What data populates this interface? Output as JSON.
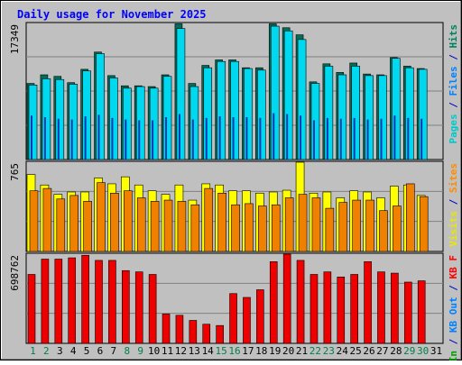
{
  "chart_data": {
    "type": "bar",
    "title": "Daily usage for November 2025",
    "categories": [
      "1",
      "2",
      "3",
      "4",
      "5",
      "6",
      "7",
      "8",
      "9",
      "10",
      "11",
      "12",
      "13",
      "14",
      "15",
      "16",
      "17",
      "18",
      "19",
      "20",
      "21",
      "22",
      "23",
      "24",
      "25",
      "26",
      "27",
      "28",
      "29",
      "30",
      "31"
    ],
    "weekend_categories": [
      "1",
      "2",
      "8",
      "9",
      "15",
      "16",
      "22",
      "23",
      "29",
      "30"
    ],
    "panels": [
      {
        "name": "top",
        "max_label": "17349",
        "ymax": 17349,
        "right_label": [
          {
            "text": "Pages",
            "color": "#00c8c8"
          },
          {
            "text": " / ",
            "color": "#0000c0"
          },
          {
            "text": "Files",
            "color": "#0080ff"
          },
          {
            "text": " / ",
            "color": "#0000c0"
          },
          {
            "text": "Hits",
            "color": "#00805c"
          }
        ],
        "series": [
          {
            "name": "Hits",
            "color": "#006e5a",
            "values": [
              9700,
              10800,
              10600,
              9800,
              11500,
              13700,
              10700,
              9400,
              9400,
              9300,
              10800,
              17300,
              9700,
              12000,
              12700,
              12700,
              11700,
              11700,
              17300,
              16800,
              15900,
              9900,
              12200,
              11100,
              12300,
              10900,
              10800,
              13000,
              11900,
              11600,
              0
            ]
          },
          {
            "name": "Files",
            "color": "#00d8f0",
            "values": [
              9500,
              10300,
              10200,
              9600,
              11300,
              13500,
              10400,
              9100,
              9300,
              9100,
              10600,
              16700,
              9300,
              11700,
              12500,
              12500,
              11600,
              11400,
              17000,
              16400,
              15300,
              9700,
              11900,
              10800,
              11900,
              10700,
              10700,
              12900,
              11700,
              11500,
              0
            ]
          },
          {
            "name": "Pages",
            "color": "#0038b8",
            "values": [
              5600,
              5400,
              5200,
              5100,
              5500,
              5700,
              5300,
              5100,
              5000,
              5000,
              5400,
              5800,
              5100,
              5300,
              5500,
              5400,
              5400,
              5300,
              5900,
              5800,
              5600,
              5000,
              5300,
              5200,
              5300,
              5100,
              5200,
              5600,
              5300,
              5200,
              0
            ]
          }
        ]
      },
      {
        "name": "mid",
        "max_label": "765",
        "ymax": 765,
        "right_label": [
          {
            "text": "Visits",
            "color": "#e8e800"
          },
          {
            "text": " / ",
            "color": "#0000c0"
          },
          {
            "text": "Sites",
            "color": "#ff8c00"
          }
        ],
        "series": [
          {
            "name": "Visits",
            "color": "#ffff00",
            "values": [
              660,
              570,
              490,
              510,
              510,
              630,
              580,
              640,
              570,
              520,
              490,
              570,
              440,
              580,
              570,
              520,
              520,
              500,
              510,
              525,
              765,
              500,
              510,
              460,
              520,
              510,
              460,
              560,
              570,
              480,
              0
            ]
          },
          {
            "name": "Sites",
            "color": "#f08000",
            "values": [
              520,
              540,
              450,
              480,
              430,
              590,
              500,
              520,
              460,
              430,
              440,
              430,
              400,
              540,
              500,
              400,
              410,
              390,
              400,
              460,
              490,
              460,
              370,
              420,
              440,
              440,
              350,
              390,
              580,
              470,
              0
            ]
          }
        ]
      },
      {
        "name": "bot",
        "max_label": "698762",
        "ymax": 698762,
        "right_label": [
          {
            "text": "KB In",
            "color": "#00a000"
          },
          {
            "text": " / ",
            "color": "#0000c0"
          },
          {
            "text": "KB Out",
            "color": "#0080ff"
          },
          {
            "text": " / ",
            "color": "#0000c0"
          },
          {
            "text": "KB F",
            "color": "#ff0000"
          }
        ],
        "series": [
          {
            "name": "KB F",
            "color": "#ef0000",
            "values": [
              540000,
              660000,
              660000,
              670000,
              690000,
              650000,
              650000,
              570000,
              560000,
              540000,
              230000,
              220000,
              180000,
              150000,
              140000,
              390000,
              360000,
              420000,
              640000,
              710000,
              650000,
              540000,
              560000,
              520000,
              540000,
              640000,
              560000,
              550000,
              480000,
              490000,
              0
            ]
          }
        ]
      }
    ]
  }
}
